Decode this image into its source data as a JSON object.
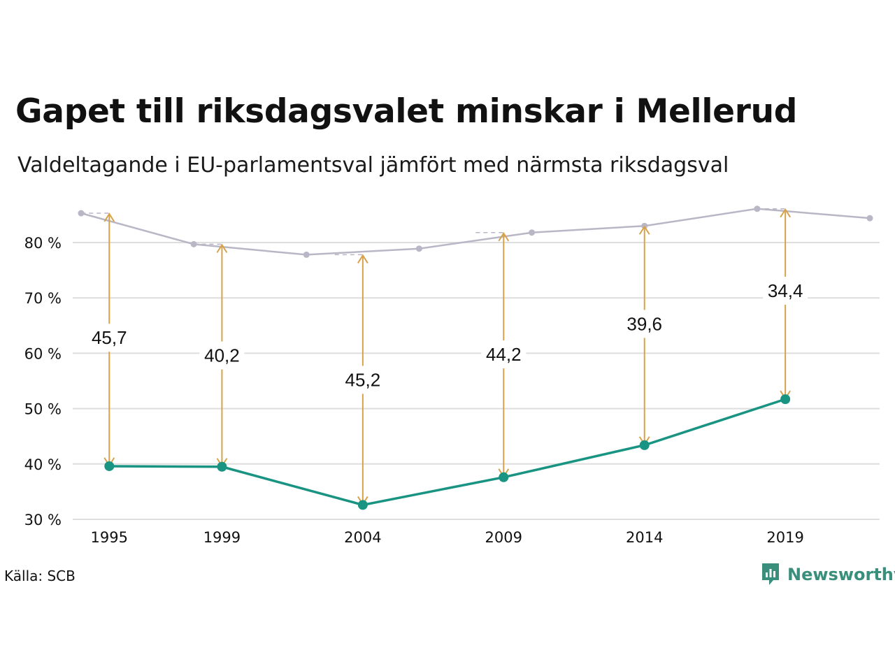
{
  "header": {
    "title": "Gapet till riksdagsvalet minskar i Mellerud",
    "subtitle": "Valdeltagande i EU-parlamentsval jämfört med närmsta riksdagsval"
  },
  "footer": {
    "source": "Källa: SCB",
    "brand": "Newsworthy"
  },
  "colors": {
    "eu_line": "#1a9482",
    "riksdag_line": "#b9b6c6",
    "gap_arrow": "#d6a24b",
    "grid": "#dedede",
    "brand": "#3a8f7c"
  },
  "chart_data": {
    "type": "line",
    "title": "Gapet till riksdagsvalet minskar i Mellerud",
    "subtitle": "Valdeltagande i EU-parlamentsval jämfört med närmsta riksdagsval",
    "ylim": [
      30,
      87
    ],
    "y_ticks": [
      30,
      40,
      50,
      60,
      70,
      80
    ],
    "y_tick_labels": [
      "30 %",
      "40 %",
      "50 %",
      "60 %",
      "70 %",
      "80 %"
    ],
    "x_ticks": [
      1995,
      1999,
      2004,
      2009,
      2014,
      2019
    ],
    "x_tick_labels": [
      "1995",
      "1999",
      "2004",
      "2009",
      "2014",
      "2019"
    ],
    "xlim": [
      1994,
      2022
    ],
    "grid": true,
    "series": [
      {
        "key": "riksdag",
        "x": [
          1994,
          1998,
          2002,
          2006,
          2010,
          2014,
          2018,
          2022
        ],
        "y": [
          85.3,
          79.7,
          77.8,
          78.9,
          81.8,
          83.0,
          86.1,
          84.4
        ]
      },
      {
        "key": "eu",
        "x": [
          1995,
          1999,
          2004,
          2009,
          2014,
          2019
        ],
        "y": [
          39.6,
          39.5,
          32.6,
          37.6,
          43.4,
          51.7
        ]
      }
    ],
    "gaps": [
      {
        "x": 1995,
        "from": 39.6,
        "to": 85.3,
        "label": "45,7",
        "label_y": 62.8
      },
      {
        "x": 1999,
        "from": 39.5,
        "to": 79.7,
        "label": "40,2",
        "label_y": 59.6
      },
      {
        "x": 2004,
        "from": 32.6,
        "to": 77.8,
        "label": "45,2",
        "label_y": 55.2
      },
      {
        "x": 2009,
        "from": 37.6,
        "to": 81.8,
        "label": "44,2",
        "label_y": 59.8
      },
      {
        "x": 2014,
        "from": 43.4,
        "to": 83.0,
        "label": "39,6",
        "label_y": 65.3
      },
      {
        "x": 2019,
        "from": 51.7,
        "to": 86.1,
        "label": "34,4",
        "label_y": 71.3
      }
    ]
  }
}
